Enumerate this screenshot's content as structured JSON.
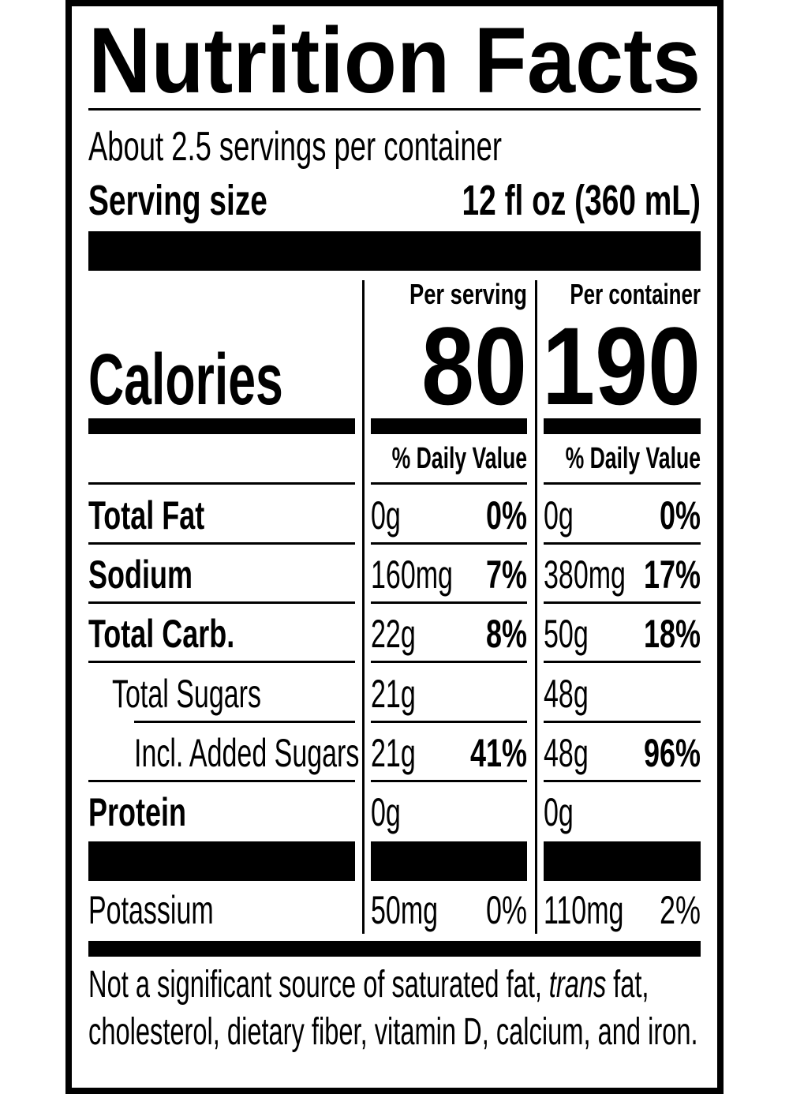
{
  "title": "Nutrition Facts",
  "servings": "About 2.5 servings per container",
  "serving_size": {
    "label": "Serving size",
    "value": "12 fl oz (360 mL)"
  },
  "columns": {
    "per_serving": "Per serving",
    "per_container": "Per container"
  },
  "calories": {
    "label": "Calories",
    "per_serving": "80",
    "per_container": "190"
  },
  "daily_value": {
    "per_serving": "% Daily Value",
    "per_container": "% Daily Value"
  },
  "rows": [
    {
      "label": "Total Fat",
      "serving_amount": "0g",
      "serving_dv": "0%",
      "container_amount": "0g",
      "container_dv": "0%"
    },
    {
      "label": "Sodium",
      "serving_amount": "160mg",
      "serving_dv": "7%",
      "container_amount": "380mg",
      "container_dv": "17%"
    },
    {
      "label": "Total Carb.",
      "serving_amount": "22g",
      "serving_dv": "8%",
      "container_amount": "50g",
      "container_dv": "18%"
    },
    {
      "label": "Total Sugars",
      "serving_amount": "21g",
      "serving_dv": null,
      "container_amount": "48g",
      "container_dv": null
    },
    {
      "label": "Incl. Added Sugars",
      "serving_amount": "21g",
      "serving_dv": "41%",
      "container_amount": "48g",
      "container_dv": "96%"
    },
    {
      "label": "Protein",
      "serving_amount": "0g",
      "serving_dv": null,
      "container_amount": "0g",
      "container_dv": null
    },
    {
      "label": "Potassium",
      "serving_amount": "50mg",
      "serving_dv": "0%",
      "container_amount": "110mg",
      "container_dv": "2%"
    }
  ],
  "footnote": {
    "lines": [
      [
        {
          "text": "Not a significant source of saturated fat,"
        },
        {
          "text": "trans",
          "italic": true
        },
        {
          "text": "fat,"
        }
      ],
      [
        {
          "text": "cholesterol, dietary fiber, vitamin D, calcium, and iron."
        }
      ]
    ]
  }
}
